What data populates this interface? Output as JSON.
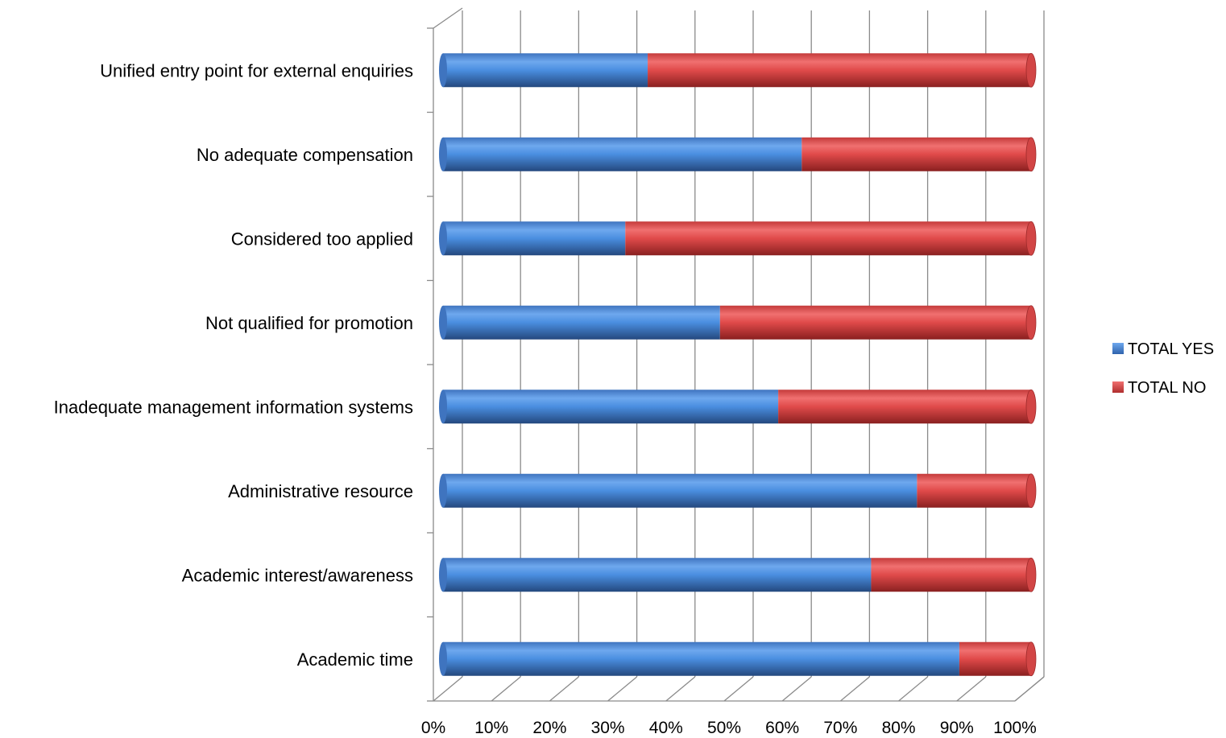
{
  "chart_data": {
    "type": "bar",
    "orientation": "horizontal",
    "stacked": "percent",
    "categories": [
      "Academic time",
      "Academic interest/awareness",
      "Administrative resource",
      "Inadequate management information systems",
      "Not qualified for promotion ",
      "Considered too applied",
      "No adequate compensation",
      "Unified entry point for external enquiries"
    ],
    "series": [
      {
        "name": "TOTAL YES",
        "color": "#4A8EE0",
        "values": [
          87.8,
          72.8,
          80.6,
          57.0,
          47.1,
          31.0,
          61.0,
          34.8
        ]
      },
      {
        "name": "TOTAL NO",
        "color": "#E04A4A",
        "values": [
          12.2,
          27.2,
          19.4,
          43.0,
          52.9,
          69.0,
          39.0,
          65.2
        ]
      }
    ],
    "xticks": [
      "0%",
      "10%",
      "20%",
      "30%",
      "40%",
      "50%",
      "60%",
      "70%",
      "80%",
      "90%",
      "100%"
    ],
    "xlim": [
      0,
      100
    ],
    "grid": "vertical",
    "legend": "right",
    "style": "3d-cylinder"
  }
}
